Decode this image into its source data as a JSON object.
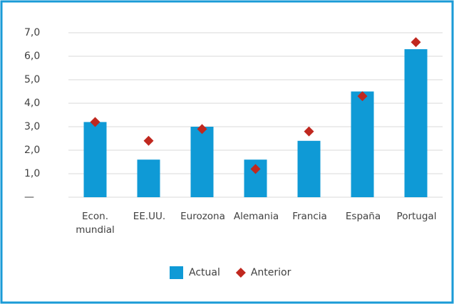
{
  "chart_data": {
    "type": "bar",
    "categories": [
      "Econ. mundial",
      "EE.UU.",
      "Eurozona",
      "Alemania",
      "Francia",
      "España",
      "Portugal"
    ],
    "series": [
      {
        "name": "Actual",
        "type": "bar",
        "color": "#0f9ad6",
        "values": [
          3.2,
          1.6,
          3.0,
          1.6,
          2.4,
          4.5,
          6.3
        ]
      },
      {
        "name": "Anterior",
        "type": "scatter",
        "color": "#c0281f",
        "values": [
          3.2,
          2.4,
          2.9,
          1.2,
          2.8,
          4.3,
          6.6
        ]
      }
    ],
    "ylim": [
      0,
      7
    ],
    "yticks": [
      {
        "value": 0,
        "label": "—"
      },
      {
        "value": 1,
        "label": "1,0"
      },
      {
        "value": 2,
        "label": "2,0"
      },
      {
        "value": 3,
        "label": "3,0"
      },
      {
        "value": 4,
        "label": "4,0"
      },
      {
        "value": 5,
        "label": "5,0"
      },
      {
        "value": 6,
        "label": "6,0"
      },
      {
        "value": 7,
        "label": "7,0"
      }
    ],
    "grid": true,
    "legend": "bottom"
  }
}
